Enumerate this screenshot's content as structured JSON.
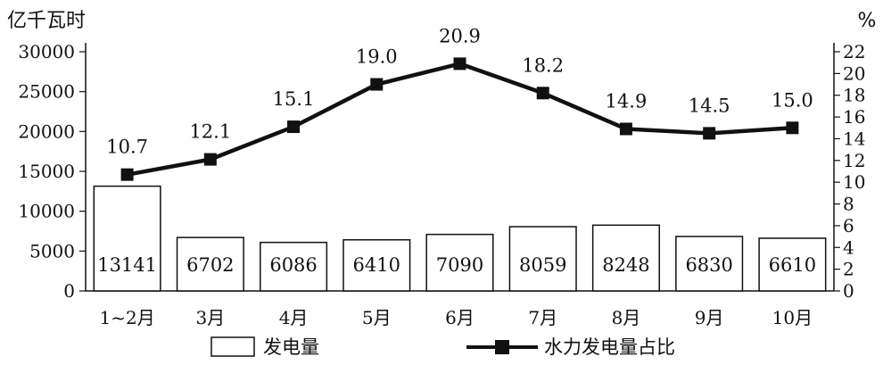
{
  "chart_data": {
    "type": "bar",
    "y_left_unit": "亿千瓦时",
    "y_right_unit": "%",
    "categories": [
      "1~2月",
      "3月",
      "4月",
      "5月",
      "6月",
      "7月",
      "8月",
      "9月",
      "10月"
    ],
    "left_ticks": [
      "0",
      "5000",
      "10000",
      "15000",
      "20000",
      "25000",
      "30000"
    ],
    "right_ticks": [
      "0",
      "2",
      "4",
      "6",
      "8",
      "10",
      "12",
      "14",
      "16",
      "18",
      "20",
      "22"
    ],
    "ylim_left": [
      0,
      30000
    ],
    "ylim_right": [
      0,
      22
    ],
    "series": [
      {
        "name": "发电量",
        "type": "bar",
        "axis": "left",
        "values": [
          13141,
          6702,
          6086,
          6410,
          7090,
          8059,
          8248,
          6830,
          6610
        ],
        "labels": [
          "13141",
          "6702",
          "6086",
          "6410",
          "7090",
          "8059",
          "8248",
          "6830",
          "6610"
        ]
      },
      {
        "name": "水力发电量占比",
        "type": "line",
        "axis": "right",
        "marker": "square",
        "values": [
          10.7,
          12.1,
          15.1,
          19.0,
          20.9,
          18.2,
          14.9,
          14.5,
          15.0
        ],
        "labels": [
          "10.7",
          "12.1",
          "15.1",
          "19.0",
          "20.9",
          "18.2",
          "14.9",
          "14.5",
          "15.0"
        ]
      }
    ],
    "legend_position": "bottom",
    "grid": false
  }
}
